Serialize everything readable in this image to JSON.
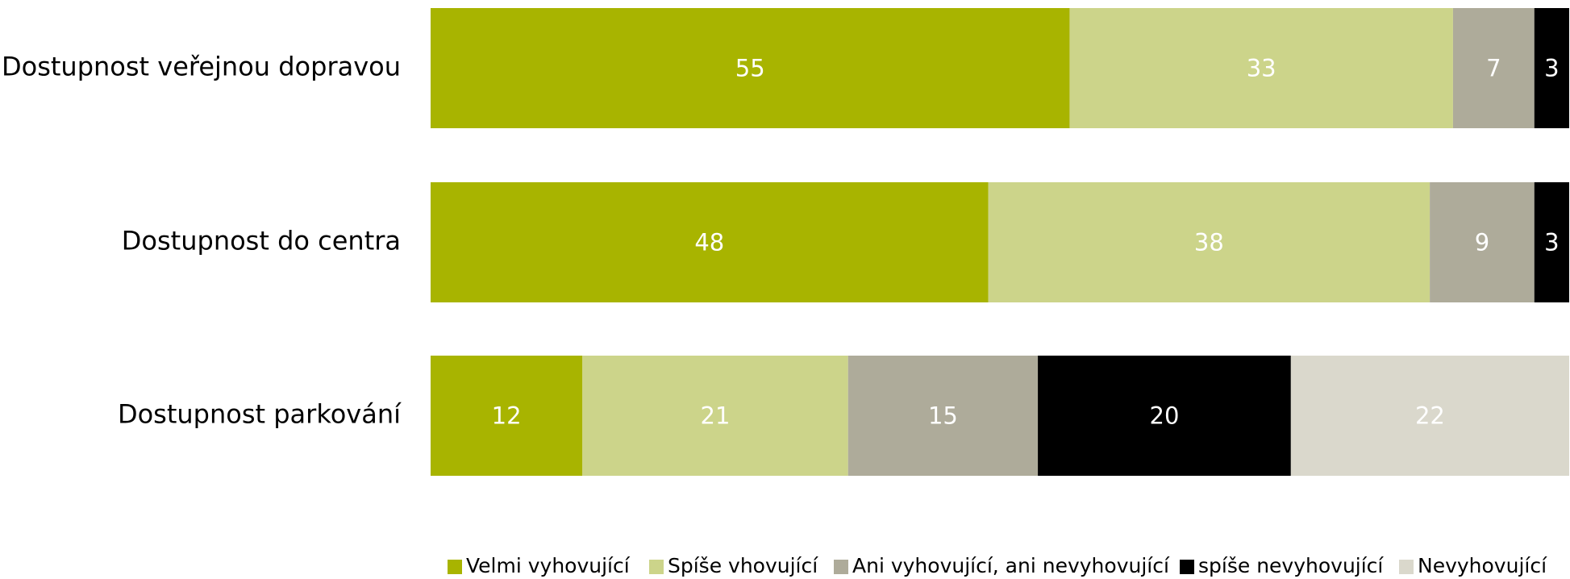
{
  "chart_data": {
    "type": "bar",
    "orientation": "horizontal",
    "stacked": "percent",
    "categories": [
      "Dostupnost veřejnou dopravou",
      "Dostupnost do centra",
      "Dostupnost parkování"
    ],
    "series": [
      {
        "name": "Velmi vyhovující",
        "color": "#a8b400",
        "values": [
          55,
          48,
          12
        ]
      },
      {
        "name": "Spíše vhovující",
        "color": "#ccd48a",
        "values": [
          33,
          38,
          21
        ]
      },
      {
        "name": "Ani vyhovující, ani nevyhovující",
        "color": "#aeab9a",
        "values": [
          7,
          9,
          15
        ]
      },
      {
        "name": "spíše nevyhovující",
        "color": "#000000",
        "values": [
          3,
          3,
          20
        ]
      },
      {
        "name": "Nevyhovující",
        "color": "#dad8cc",
        "values": [
          null,
          null,
          22
        ]
      }
    ],
    "legend": "bottom"
  }
}
